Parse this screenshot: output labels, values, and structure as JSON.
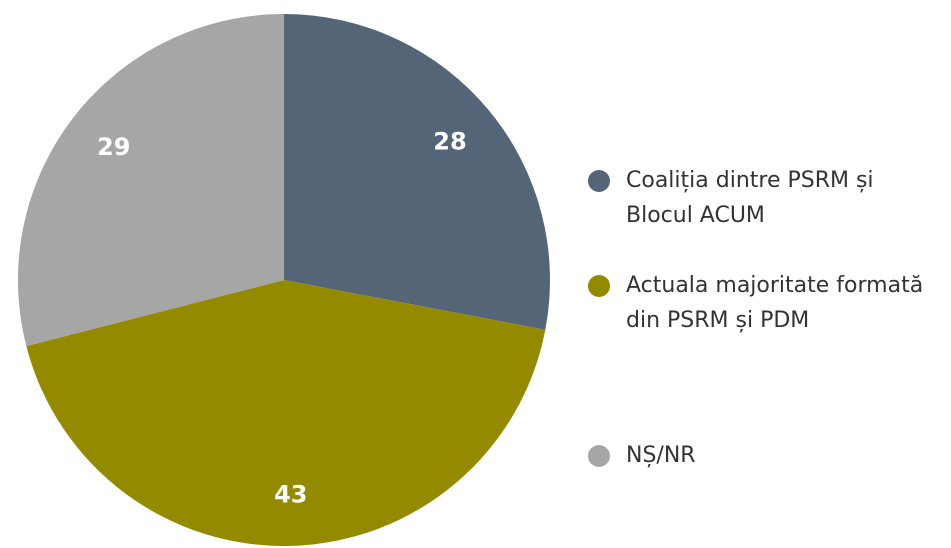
{
  "chart_data": {
    "type": "pie",
    "categories": [
      "Coaliția dintre PSRM și Blocul ACUM",
      "Actuala majoritate formată din PSRM și PDM",
      "NȘ/NR"
    ],
    "values": [
      28,
      43,
      29
    ],
    "colors": [
      "#546577",
      "#948a00",
      "#a6a6a6"
    ]
  }
}
